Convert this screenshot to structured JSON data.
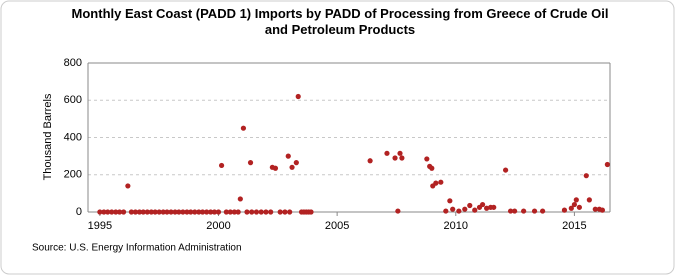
{
  "chart_data": {
    "type": "scatter",
    "title": "Monthly East Coast (PADD 1) Imports by PADD of Processing from Greece of Crude Oil and Petroleum Products",
    "y_label": "Thousand Barrels",
    "source": "Source: U.S. Energy Information Administration",
    "color": "#b22222",
    "grid": true,
    "xlim": [
      1994.5,
      2016.5
    ],
    "xticks": [
      1995,
      2000,
      2005,
      2010,
      2015
    ],
    "ylim": [
      0,
      800
    ],
    "yticks": [
      0,
      200,
      400,
      600,
      800
    ],
    "x": [
      1995.0,
      1995.17,
      1995.33,
      1995.5,
      1995.67,
      1995.83,
      1996.0,
      1996.18,
      1996.33,
      1996.5,
      1996.67,
      1996.83,
      1997.0,
      1997.17,
      1997.33,
      1997.5,
      1997.67,
      1997.83,
      1998.0,
      1998.17,
      1998.33,
      1998.5,
      1998.67,
      1998.83,
      1999.0,
      1999.17,
      1999.33,
      1999.5,
      1999.67,
      1999.83,
      2000.0,
      2000.13,
      2000.33,
      2000.5,
      2000.67,
      2000.83,
      2000.92,
      2001.05,
      2001.2,
      2001.35,
      2001.4,
      2001.6,
      2001.8,
      2002.0,
      2002.2,
      2002.27,
      2002.4,
      2002.6,
      2002.8,
      2002.94,
      2003.0,
      2003.1,
      2003.28,
      2003.36,
      2003.5,
      2003.6,
      2003.7,
      2003.8,
      2003.9,
      2006.39,
      2007.1,
      2007.44,
      2007.56,
      2007.65,
      2007.73,
      2008.78,
      2008.9,
      2008.99,
      2009.03,
      2009.16,
      2009.37,
      2009.58,
      2009.75,
      2009.87,
      2010.13,
      2010.38,
      2010.59,
      2010.8,
      2011.0,
      2011.13,
      2011.3,
      2011.47,
      2011.6,
      2012.1,
      2012.31,
      2012.48,
      2012.86,
      2013.32,
      2013.66,
      2014.58,
      2014.87,
      2015.0,
      2015.08,
      2015.21,
      2015.5,
      2015.63,
      2015.88,
      2016.05,
      2016.18,
      2016.39
    ],
    "values": [
      0,
      0,
      0,
      0,
      0,
      0,
      0,
      140,
      0,
      0,
      0,
      0,
      0,
      0,
      0,
      0,
      0,
      0,
      0,
      0,
      0,
      0,
      0,
      0,
      0,
      0,
      0,
      0,
      0,
      0,
      0,
      250,
      0,
      0,
      0,
      0,
      70,
      450,
      0,
      265,
      0,
      0,
      0,
      0,
      0,
      240,
      235,
      0,
      0,
      300,
      0,
      240,
      265,
      620,
      0,
      0,
      0,
      0,
      0,
      275,
      315,
      290,
      5,
      315,
      290,
      285,
      245,
      235,
      140,
      155,
      160,
      5,
      60,
      15,
      5,
      15,
      35,
      10,
      25,
      40,
      20,
      25,
      25,
      225,
      5,
      5,
      5,
      5,
      5,
      10,
      20,
      40,
      65,
      25,
      195,
      65,
      15,
      15,
      10,
      255
    ]
  }
}
